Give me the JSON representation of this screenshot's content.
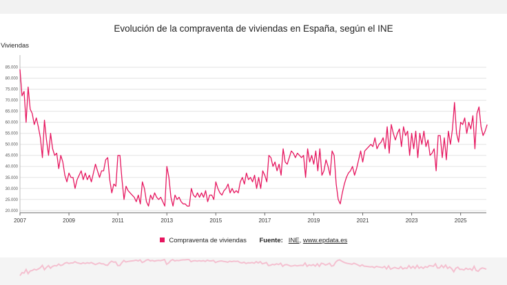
{
  "chart_data": {
    "type": "line",
    "title": "Evolución de la compraventa de viviendas en España, según el INE",
    "ylabel": "Viviendas",
    "xlabel": "",
    "ylim": [
      19000,
      88000
    ],
    "xlim": [
      2007.0,
      2026.05
    ],
    "y_ticks": [
      20000,
      25000,
      30000,
      35000,
      40000,
      45000,
      50000,
      55000,
      60000,
      65000,
      70000,
      75000,
      80000,
      85000
    ],
    "y_tick_labels": [
      "20.000",
      "25.000",
      "30.000",
      "35.000",
      "40.000",
      "45.000",
      "50.000",
      "55.000",
      "60.000",
      "65.000",
      "70.000",
      "75.000",
      "80.000",
      "85.000"
    ],
    "x_ticks": [
      2007,
      2009,
      2011,
      2013,
      2015,
      2017,
      2019,
      2021,
      2023,
      2025
    ],
    "x_tick_labels": [
      "2007",
      "2009",
      "2011",
      "2013",
      "2015",
      "2017",
      "2019",
      "2021",
      "2023",
      "2025"
    ],
    "grid": true,
    "legend_position": "bottom",
    "series": [
      {
        "name": "Compraventa de viviendas",
        "color": "#e6165f",
        "start": "2007-01",
        "values": [
          84000,
          72000,
          74000,
          60000,
          76000,
          66000,
          64000,
          59000,
          62000,
          58000,
          53000,
          44000,
          61000,
          52000,
          45000,
          55000,
          48000,
          45000,
          46000,
          39000,
          45000,
          42000,
          36000,
          33000,
          37000,
          35000,
          35000,
          30000,
          34000,
          36000,
          38000,
          34000,
          37000,
          34000,
          36000,
          33000,
          37000,
          41000,
          38000,
          35000,
          38000,
          38000,
          43000,
          44000,
          34000,
          28000,
          32000,
          31000,
          45000,
          45000,
          34000,
          25000,
          31000,
          29000,
          28000,
          27000,
          26000,
          24000,
          27000,
          23000,
          33000,
          30000,
          24000,
          22000,
          27000,
          25000,
          28000,
          26000,
          25000,
          26000,
          24000,
          22000,
          40000,
          35000,
          26000,
          22000,
          27000,
          25000,
          26000,
          24000,
          23000,
          23000,
          22000,
          22000,
          30000,
          27000,
          26000,
          28000,
          26000,
          28000,
          26000,
          29000,
          24000,
          27000,
          27000,
          25000,
          33000,
          30000,
          28000,
          27000,
          29000,
          30000,
          32000,
          28000,
          30000,
          28000,
          29000,
          28000,
          33000,
          35000,
          32000,
          37000,
          34000,
          35000,
          33000,
          36000,
          30000,
          35000,
          30000,
          38000,
          36000,
          33000,
          45000,
          44000,
          40000,
          42000,
          38000,
          41000,
          36000,
          48000,
          42000,
          41000,
          44000,
          47000,
          46000,
          44000,
          46000,
          45000,
          44000,
          45000,
          35000,
          48000,
          42000,
          45000,
          41000,
          47000,
          38000,
          48000,
          36000,
          38000,
          43000,
          40000,
          36000,
          47000,
          45000,
          32000,
          25000,
          23000,
          28000,
          32000,
          35000,
          37000,
          38000,
          40000,
          36000,
          39000,
          43000,
          47000,
          42000,
          47000,
          48000,
          49000,
          50000,
          49000,
          53000,
          48000,
          50000,
          51000,
          53000,
          48000,
          58000,
          46000,
          59000,
          55000,
          52000,
          55000,
          57000,
          49000,
          58000,
          54000,
          56000,
          45000,
          55000,
          48000,
          56000,
          44000,
          55000,
          50000,
          56000,
          49000,
          52000,
          45000,
          46000,
          48000,
          38000,
          54000,
          54000,
          44000,
          53000,
          43000,
          56000,
          50000,
          57000,
          69000,
          55000,
          51000,
          60000,
          59000,
          62000,
          55000,
          60000,
          57000,
          63000,
          48000,
          64000,
          67000,
          58000,
          54000,
          56000,
          59000
        ]
      }
    ]
  },
  "legend": {
    "items": [
      {
        "label": "Compraventa de viviendas",
        "color": "#e6165f"
      }
    ]
  },
  "source": {
    "label": "Fuente:",
    "links": [
      "INE",
      "www.epdata.es"
    ],
    "separator": ", "
  }
}
